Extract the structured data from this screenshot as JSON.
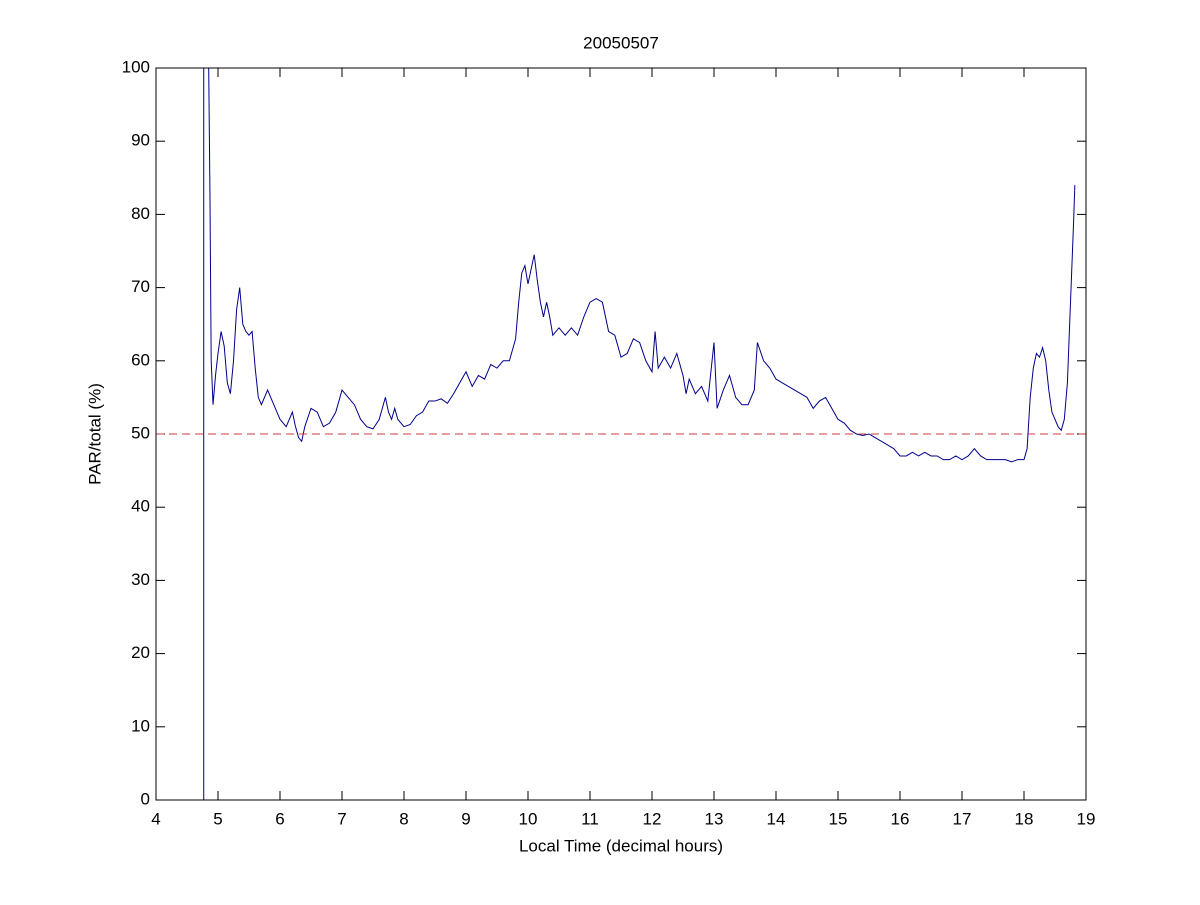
{
  "chart_data": {
    "type": "line",
    "title": "20050507",
    "x_label": "Local Time (decimal hours)",
    "y_label": "PAR/total (%)",
    "xlim": [
      4,
      19
    ],
    "ylim": [
      0,
      100
    ],
    "xticks": [
      4,
      5,
      6,
      7,
      8,
      9,
      10,
      11,
      12,
      13,
      14,
      15,
      16,
      17,
      18,
      19
    ],
    "yticks": [
      0,
      10,
      20,
      30,
      40,
      50,
      60,
      70,
      80,
      90,
      100
    ],
    "grid": false,
    "reference_line": {
      "value": 50,
      "color": "#c83c3c",
      "style": "dashed"
    },
    "series": [
      {
        "color": "#00008b",
        "x": [
          4.77,
          4.77,
          4.85,
          4.87,
          4.89,
          4.92,
          4.96,
          5.0,
          5.05,
          5.1,
          5.15,
          5.2,
          5.25,
          5.3,
          5.35,
          5.4,
          5.45,
          5.5,
          5.55,
          5.6,
          5.65,
          5.7,
          5.8,
          5.9,
          6.0,
          6.1,
          6.15,
          6.2,
          6.25,
          6.3,
          6.35,
          6.4,
          6.5,
          6.6,
          6.7,
          6.8,
          6.9,
          7.0,
          7.1,
          7.2,
          7.3,
          7.4,
          7.5,
          7.6,
          7.7,
          7.75,
          7.8,
          7.85,
          7.9,
          8.0,
          8.1,
          8.2,
          8.3,
          8.4,
          8.5,
          8.6,
          8.7,
          8.8,
          8.9,
          9.0,
          9.1,
          9.2,
          9.3,
          9.4,
          9.5,
          9.6,
          9.7,
          9.8,
          9.85,
          9.9,
          9.95,
          10.0,
          10.05,
          10.1,
          10.15,
          10.2,
          10.25,
          10.3,
          10.35,
          10.4,
          10.5,
          10.6,
          10.7,
          10.8,
          10.9,
          11.0,
          11.1,
          11.2,
          11.3,
          11.4,
          11.5,
          11.6,
          11.7,
          11.8,
          11.9,
          12.0,
          12.05,
          12.1,
          12.2,
          12.3,
          12.4,
          12.5,
          12.55,
          12.6,
          12.7,
          12.8,
          12.9,
          13.0,
          13.05,
          13.15,
          13.25,
          13.35,
          13.45,
          13.55,
          13.65,
          13.7,
          13.8,
          13.9,
          14.0,
          14.1,
          14.2,
          14.3,
          14.4,
          14.5,
          14.6,
          14.7,
          14.8,
          14.9,
          15.0,
          15.1,
          15.2,
          15.3,
          15.4,
          15.5,
          15.6,
          15.7,
          15.8,
          15.9,
          16.0,
          16.1,
          16.2,
          16.3,
          16.4,
          16.5,
          16.6,
          16.7,
          16.8,
          16.9,
          17.0,
          17.1,
          17.2,
          17.3,
          17.4,
          17.5,
          17.6,
          17.7,
          17.8,
          17.9,
          18.0,
          18.05,
          18.1,
          18.15,
          18.2,
          18.25,
          18.3,
          18.35,
          18.4,
          18.45,
          18.5,
          18.55,
          18.6,
          18.65,
          18.7,
          18.75,
          18.8,
          18.82
        ],
        "values": [
          0,
          100,
          100,
          83,
          60,
          54,
          58,
          61,
          64,
          62,
          57,
          55.5,
          60,
          67,
          70,
          65,
          64,
          63.5,
          64,
          59,
          55,
          54,
          56,
          54,
          52,
          51,
          52,
          53,
          51,
          49.5,
          49,
          51,
          53.5,
          53,
          51,
          51.5,
          53,
          56,
          55,
          54,
          52,
          51,
          50.7,
          52,
          55,
          53,
          52,
          53.5,
          52,
          51,
          51.3,
          52.5,
          53,
          54.5,
          54.5,
          54.8,
          54.2,
          55.5,
          57,
          58.5,
          56.5,
          58,
          57.5,
          59.5,
          59,
          60,
          60,
          63,
          68,
          72,
          73,
          70.5,
          72.5,
          74.5,
          71,
          68,
          66,
          68,
          66,
          63.5,
          64.5,
          63.5,
          64.5,
          63.5,
          66,
          68,
          68.5,
          68,
          64,
          63.5,
          60.5,
          61,
          63,
          62.5,
          60,
          58.5,
          64,
          59,
          60.5,
          59,
          61,
          58,
          55.5,
          57.5,
          55.5,
          56.5,
          54.5,
          62.5,
          53.5,
          56,
          58,
          55,
          54,
          54,
          56,
          62.5,
          60,
          59,
          57.5,
          57,
          56.5,
          56,
          55.5,
          55,
          53.5,
          54.5,
          55,
          53.5,
          52,
          51.5,
          50.5,
          50,
          49.8,
          50,
          49.5,
          49,
          48.5,
          48,
          47,
          47,
          47.5,
          47,
          47.5,
          47,
          47,
          46.5,
          46.5,
          47,
          46.5,
          47,
          48,
          47,
          46.5,
          46.5,
          46.5,
          46.5,
          46.2,
          46.5,
          46.5,
          48,
          55,
          59,
          61,
          60.5,
          61.8,
          60,
          56,
          53,
          52,
          51,
          50.5,
          52,
          57,
          68,
          79,
          84
        ]
      }
    ]
  }
}
